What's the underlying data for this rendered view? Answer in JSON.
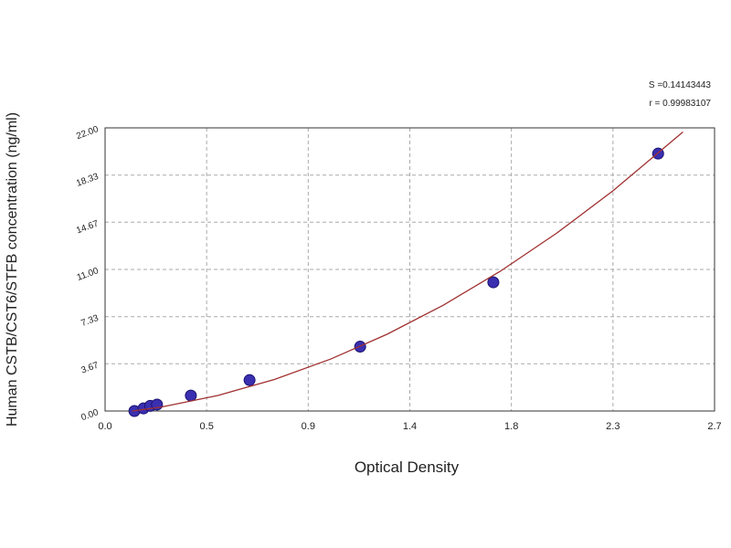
{
  "chart_data": {
    "type": "scatter",
    "x_label": "Optical Density",
    "y_label": "Human CSTB/CST6/STFB concentration (ng/ml)",
    "annotations": [
      "S =0.14143443",
      "r = 0.99983107"
    ],
    "series": [
      {
        "color": "#3a2fb0",
        "x": [
          0.13,
          0.17,
          0.2,
          0.23,
          0.38,
          0.64,
          1.13,
          1.72,
          2.45
        ],
        "values": [
          0,
          0.2,
          0.4,
          0.5,
          1.2,
          2.4,
          5.0,
          10.0,
          20.0
        ]
      },
      {
        "type": "line",
        "color": "#a03030",
        "x": [
          0.12,
          0.25,
          0.5,
          0.75,
          1.0,
          1.25,
          1.5,
          1.75,
          2.0,
          2.25,
          2.56
        ],
        "values": [
          0,
          0.31,
          1.21,
          2.45,
          4.04,
          5.97,
          8.24,
          10.85,
          13.81,
          17.11,
          21.68
        ]
      }
    ],
    "xlim": [
      0,
      2.7
    ],
    "xticks": [
      {
        "value": 0,
        "label": "0.0"
      },
      {
        "value": 0.45,
        "label": "0.5"
      },
      0.9,
      {
        "value": 1.35,
        "label": "1.4"
      },
      1.8,
      {
        "value": 2.25,
        "label": "2.3"
      },
      2.7
    ],
    "ylim": [
      0,
      22
    ],
    "yticks": [
      {
        "value": 0,
        "label": "0.00"
      },
      {
        "value": 3.67,
        "label": "3.67"
      },
      {
        "value": 7.33,
        "label": "7.33"
      },
      {
        "value": 11,
        "label": "11.00"
      },
      {
        "value": 14.67,
        "label": "14.67"
      },
      {
        "value": 18.33,
        "label": "18.33"
      },
      {
        "value": 22,
        "label": "22.00"
      }
    ],
    "grid": true
  }
}
